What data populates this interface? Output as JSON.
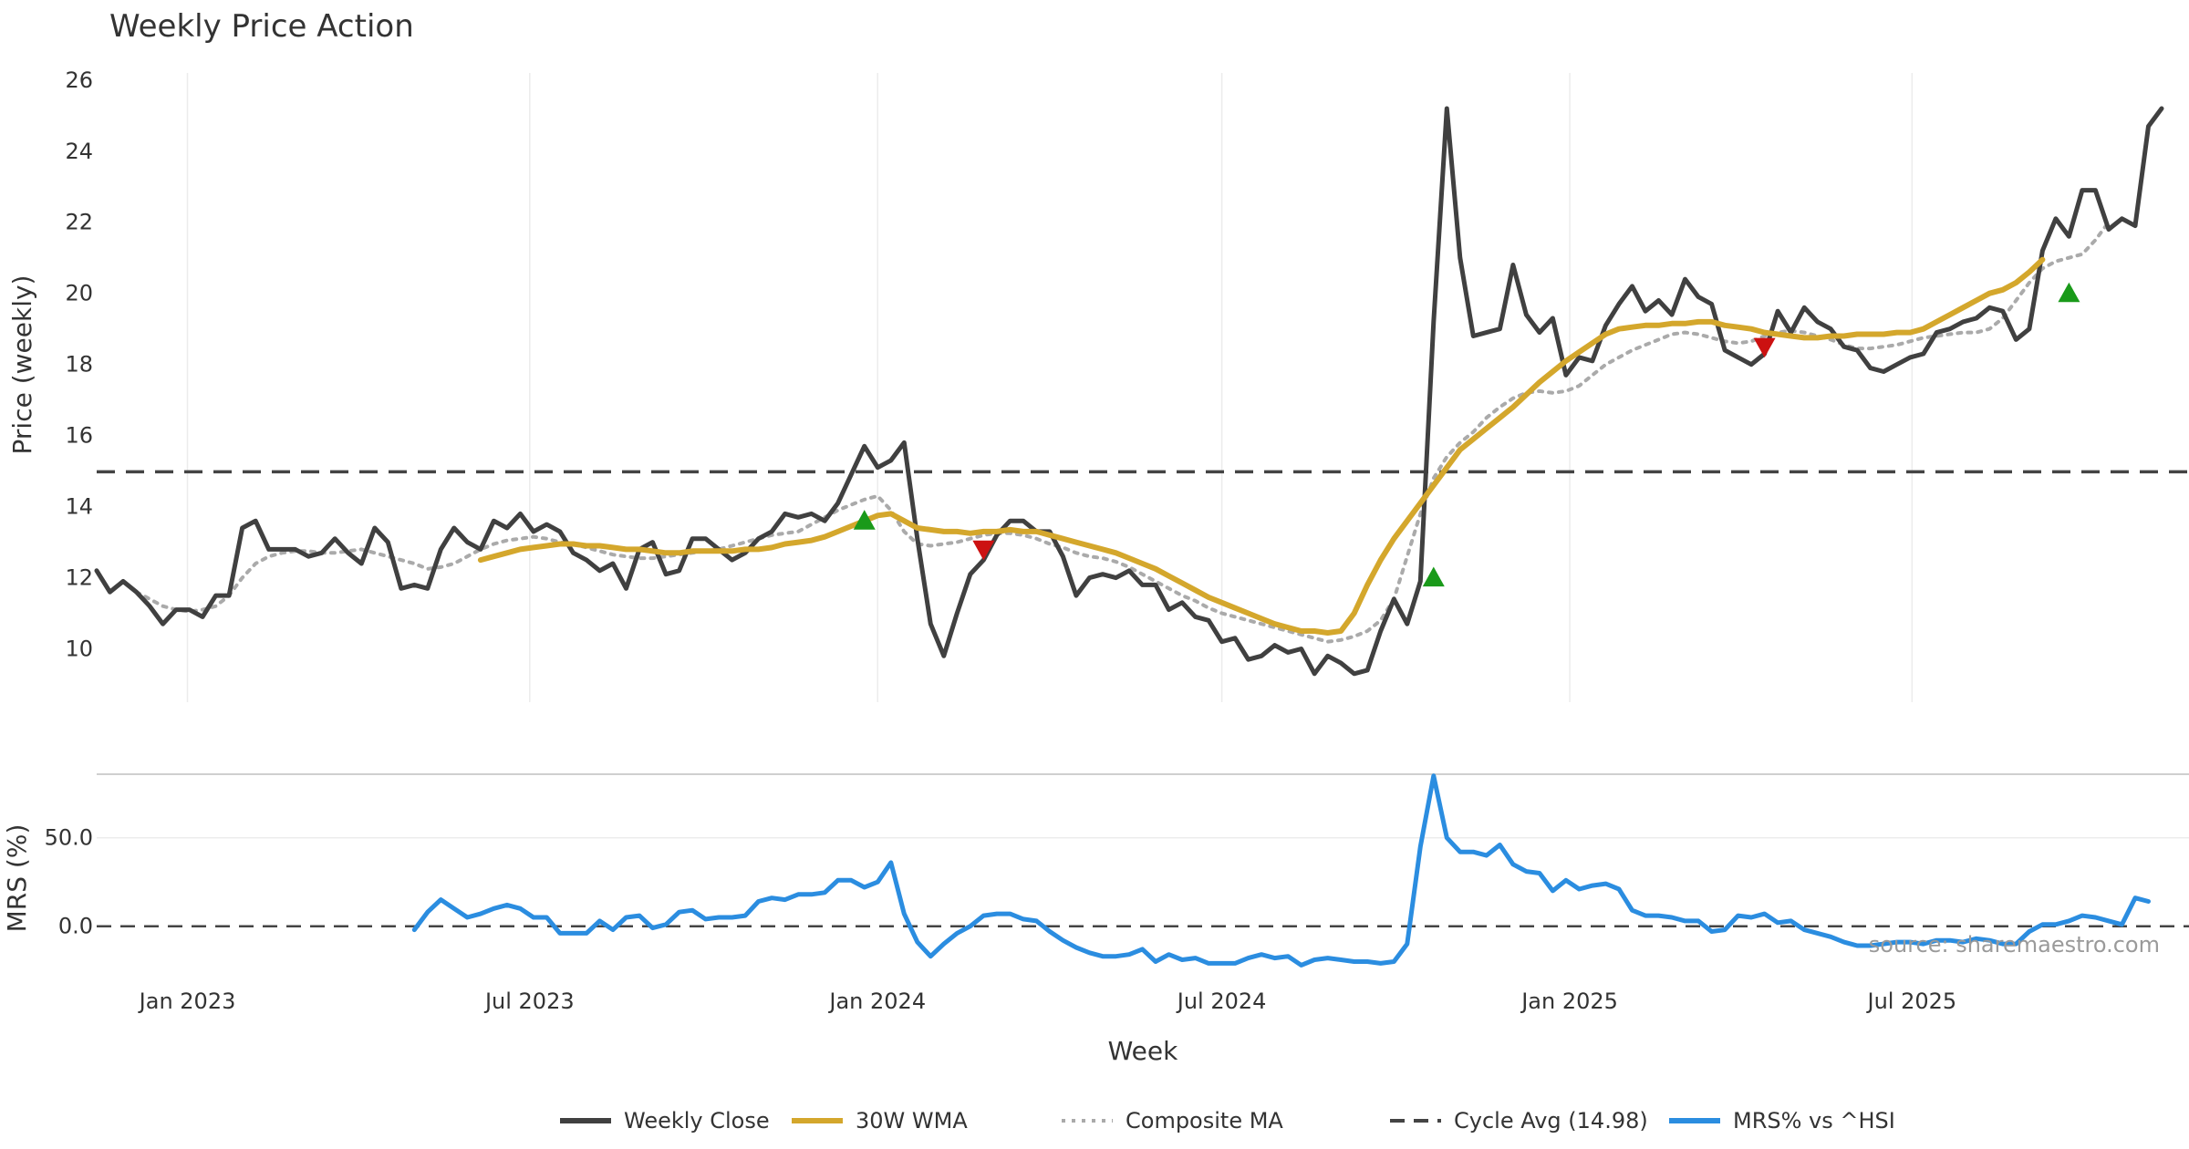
{
  "chart_data": {
    "type": "line",
    "title": "Weekly Price Action",
    "xlabel": "Week",
    "source": "source: sharemaestro.com",
    "x_ticks": [
      "Jan 2023",
      "Jul 2023",
      "Jan 2024",
      "Jul 2024",
      "Jan 2025",
      "Jul 2025"
    ],
    "colors": {
      "close": "#404040",
      "wma": "#d4a72c",
      "composite": "#aaaaaa",
      "cycle": "#444444",
      "mrs": "#2b8de0",
      "buy": "#1a9a1a",
      "sell": "#cc1111"
    },
    "price_panel": {
      "ylabel": "Price (weekly)",
      "ylim": [
        8.5,
        26.2
      ],
      "y_ticks": [
        "10",
        "12",
        "14",
        "16",
        "18",
        "20",
        "22",
        "24",
        "26"
      ],
      "cycle_avg": 14.98,
      "x_start": "2022-11-14",
      "series": [
        {
          "name": "Weekly Close",
          "key": "close",
          "values": [
            12.2,
            11.6,
            11.9,
            11.6,
            11.2,
            10.7,
            11.1,
            11.1,
            10.9,
            11.5,
            11.5,
            13.4,
            13.6,
            12.8,
            12.8,
            12.8,
            12.6,
            12.7,
            13.1,
            12.7,
            12.4,
            13.4,
            13.0,
            11.7,
            11.8,
            11.7,
            12.8,
            13.4,
            13.0,
            12.8,
            13.6,
            13.4,
            13.8,
            13.3,
            13.5,
            13.3,
            12.7,
            12.5,
            12.2,
            12.4,
            11.7,
            12.8,
            13.0,
            12.1,
            12.2,
            13.1,
            13.1,
            12.8,
            12.5,
            12.7,
            13.1,
            13.3,
            13.8,
            13.7,
            13.8,
            13.6,
            14.1,
            14.9,
            15.7,
            15.1,
            15.3,
            15.8,
            13.1,
            10.7,
            9.8,
            11.0,
            12.1,
            12.5,
            13.2,
            13.6,
            13.6,
            13.3,
            13.3,
            12.6,
            11.5,
            12.0,
            12.1,
            12.0,
            12.2,
            11.8,
            11.8,
            11.1,
            11.3,
            10.9,
            10.8,
            10.2,
            10.3,
            9.7,
            9.8,
            10.1,
            9.9,
            10.0,
            9.3,
            9.8,
            9.6,
            9.3,
            9.4,
            10.5,
            11.4,
            10.7,
            11.9,
            19.2,
            25.2,
            21.0,
            18.8,
            18.9,
            19.0,
            20.8,
            19.4,
            18.9,
            19.3,
            17.7,
            18.2,
            18.1,
            19.1,
            19.7,
            20.2,
            19.5,
            19.8,
            19.4,
            20.4,
            19.9,
            19.7,
            18.4,
            18.2,
            18.0,
            18.3,
            19.5,
            18.9,
            19.6,
            19.2,
            19.0,
            18.5,
            18.4,
            17.9,
            17.8,
            18.0,
            18.2,
            18.3,
            18.9,
            19.0,
            19.2,
            19.3,
            19.6,
            19.5,
            18.7,
            19.0,
            21.2,
            22.1,
            21.6,
            22.9,
            22.9,
            21.8,
            22.1,
            21.9,
            24.7,
            25.2
          ]
        },
        {
          "name": "30W WMA",
          "key": "wma",
          "start": 29,
          "values": [
            12.5,
            12.6,
            12.7,
            12.8,
            12.85,
            12.9,
            12.95,
            12.95,
            12.9,
            12.9,
            12.85,
            12.8,
            12.8,
            12.75,
            12.7,
            12.7,
            12.75,
            12.75,
            12.75,
            12.75,
            12.8,
            12.8,
            12.85,
            12.95,
            13.0,
            13.05,
            13.15,
            13.3,
            13.45,
            13.6,
            13.75,
            13.8,
            13.6,
            13.4,
            13.35,
            13.3,
            13.3,
            13.25,
            13.3,
            13.3,
            13.35,
            13.3,
            13.3,
            13.2,
            13.1,
            13.0,
            12.9,
            12.8,
            12.7,
            12.55,
            12.4,
            12.25,
            12.05,
            11.85,
            11.65,
            11.45,
            11.3,
            11.15,
            11.0,
            10.85,
            10.7,
            10.6,
            10.5,
            10.5,
            10.45,
            10.5,
            11.0,
            11.8,
            12.5,
            13.1,
            13.6,
            14.1,
            14.6,
            15.1,
            15.6,
            15.9,
            16.2,
            16.5,
            16.8,
            17.15,
            17.5,
            17.8,
            18.1,
            18.35,
            18.6,
            18.85,
            19.0,
            19.05,
            19.1,
            19.1,
            19.15,
            19.15,
            19.2,
            19.2,
            19.1,
            19.05,
            19.0,
            18.9,
            18.85,
            18.8,
            18.75,
            18.75,
            18.8,
            18.8,
            18.85,
            18.85,
            18.85,
            18.9,
            18.9,
            19.0,
            19.2,
            19.4,
            19.6,
            19.8,
            20.0,
            20.1,
            20.3,
            20.6,
            20.95
          ]
        },
        {
          "name": "Composite MA",
          "key": "composite",
          "start": 3,
          "values": [
            11.6,
            11.4,
            11.2,
            11.1,
            11.05,
            11.1,
            11.2,
            11.5,
            12.0,
            12.4,
            12.6,
            12.7,
            12.75,
            12.75,
            12.7,
            12.7,
            12.75,
            12.8,
            12.7,
            12.6,
            12.5,
            12.4,
            12.25,
            12.3,
            12.4,
            12.6,
            12.8,
            12.95,
            13.05,
            13.1,
            13.15,
            13.1,
            13.0,
            12.95,
            12.85,
            12.75,
            12.65,
            12.6,
            12.55,
            12.55,
            12.6,
            12.65,
            12.7,
            12.75,
            12.8,
            12.9,
            13.0,
            13.1,
            13.2,
            13.25,
            13.3,
            13.5,
            13.7,
            13.9,
            14.05,
            14.2,
            14.3,
            13.9,
            13.3,
            12.95,
            12.9,
            12.95,
            13.0,
            13.1,
            13.2,
            13.25,
            13.25,
            13.2,
            13.1,
            12.95,
            12.85,
            12.7,
            12.6,
            12.55,
            12.45,
            12.3,
            12.1,
            11.9,
            11.7,
            11.5,
            11.35,
            11.15,
            11.0,
            10.9,
            10.8,
            10.7,
            10.6,
            10.5,
            10.4,
            10.3,
            10.2,
            10.25,
            10.35,
            10.5,
            10.8,
            11.4,
            12.6,
            13.8,
            14.8,
            15.4,
            15.8,
            16.1,
            16.5,
            16.8,
            17.05,
            17.2,
            17.25,
            17.2,
            17.25,
            17.4,
            17.7,
            18.0,
            18.2,
            18.4,
            18.55,
            18.7,
            18.85,
            18.9,
            18.85,
            18.75,
            18.65,
            18.6,
            18.65,
            18.8,
            18.9,
            18.95,
            18.9,
            18.8,
            18.7,
            18.55,
            18.45,
            18.45,
            18.5,
            18.55,
            18.65,
            18.75,
            18.8,
            18.85,
            18.9,
            18.9,
            19.0,
            19.3,
            19.8,
            20.3,
            20.7,
            20.9,
            21.0,
            21.1,
            21.5,
            22.0
          ]
        }
      ],
      "markers": [
        {
          "type": "buy",
          "x": 58,
          "y": 13.6
        },
        {
          "type": "sell",
          "x": 67,
          "y": 12.8
        },
        {
          "type": "buy",
          "x": 101,
          "y": 12.0
        },
        {
          "type": "sell",
          "x": 126,
          "y": 18.5
        },
        {
          "type": "buy",
          "x": 149,
          "y": 20.0
        }
      ]
    },
    "mrs_panel": {
      "ylabel": "MRS (%)",
      "ylim": [
        -28,
        88
      ],
      "y_ticks": [
        "0.0",
        "50.0"
      ],
      "series": [
        {
          "name": "MRS% vs ^HSI",
          "key": "mrs",
          "start": 24,
          "values": [
            -2,
            8,
            15,
            10,
            5,
            7,
            10,
            12,
            10,
            5,
            5,
            -4,
            -4,
            -4,
            3,
            -2,
            5,
            6,
            -1,
            1,
            8,
            9,
            4,
            5,
            5,
            6,
            14,
            16,
            15,
            18,
            18,
            19,
            26,
            26,
            22,
            25,
            36,
            7,
            -9,
            -17,
            -10,
            -4,
            0,
            6,
            7,
            7,
            4,
            3,
            -3,
            -8,
            -12,
            -15,
            -17,
            -17,
            -16,
            -13,
            -20,
            -16,
            -19,
            -18,
            -21,
            -21,
            -21,
            -18,
            -16,
            -18,
            -17,
            -22,
            -19,
            -18,
            -19,
            -20,
            -20,
            -21,
            -20,
            -10,
            45,
            85,
            50,
            42,
            42,
            40,
            46,
            35,
            31,
            30,
            20,
            26,
            21,
            23,
            24,
            21,
            9,
            6,
            6,
            5,
            3,
            3,
            -3,
            -2,
            6,
            5,
            7,
            2,
            3,
            -2,
            -4,
            -6,
            -9,
            -11,
            -11,
            -10,
            -9,
            -9,
            -10,
            -8,
            -8,
            -9,
            -7,
            -8,
            -10,
            -10,
            -3,
            1,
            1,
            3,
            6,
            5,
            3,
            1,
            16,
            14
          ]
        }
      ]
    },
    "legend": {
      "placement": "bottom-center",
      "items": [
        {
          "label": "Weekly Close",
          "key": "close",
          "style": "solid"
        },
        {
          "label": "30W WMA",
          "key": "wma",
          "style": "solid"
        },
        {
          "label": "Composite MA",
          "key": "composite",
          "style": "dotted"
        },
        {
          "label": "Cycle Avg (14.98)",
          "key": "cycle",
          "style": "dashed"
        },
        {
          "label": "MRS% vs ^HSI",
          "key": "mrs",
          "style": "solid"
        }
      ]
    }
  }
}
